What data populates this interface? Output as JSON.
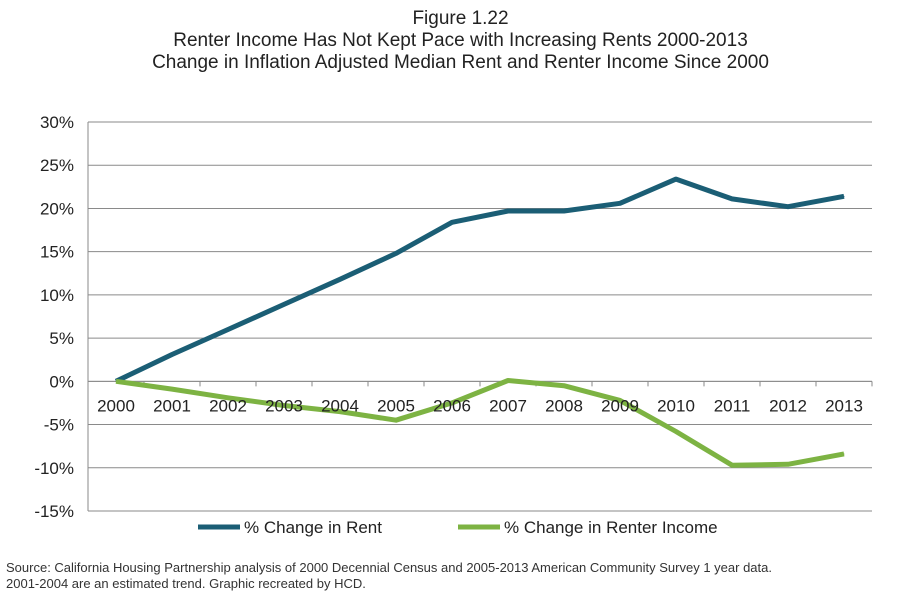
{
  "chart_data": {
    "type": "line",
    "title": "Figure 1.22",
    "subtitle": "Renter Income Has Not Kept Pace with Increasing Rents 2000-2013",
    "subtitle2": "Change in Inflation Adjusted Median Rent and Renter Income Since 2000",
    "categories": [
      "2000",
      "2001",
      "2002",
      "2003",
      "2004",
      "2005",
      "2006",
      "2007",
      "2008",
      "2009",
      "2010",
      "2011",
      "2012",
      "2013"
    ],
    "ylim": [
      -15,
      30
    ],
    "yticks": [
      "30%",
      "25%",
      "20%",
      "15%",
      "10%",
      "5%",
      "0%",
      "-5%",
      "-10%",
      "-15%"
    ],
    "ytick_values": [
      30,
      25,
      20,
      15,
      10,
      5,
      0,
      -5,
      -10,
      -15
    ],
    "grid": true,
    "legend_position": "bottom",
    "series": [
      {
        "name": "% Change in Rent",
        "color": "#1b5e75",
        "values": [
          0,
          3.1,
          6.0,
          8.9,
          11.8,
          14.8,
          18.4,
          19.7,
          19.7,
          20.6,
          23.4,
          21.1,
          20.2,
          21.4
        ]
      },
      {
        "name": "% Change in Renter Income",
        "color": "#7db343",
        "values": [
          0,
          -0.9,
          -1.9,
          -2.8,
          -3.5,
          -4.5,
          -2.5,
          0.1,
          -0.5,
          -2.2,
          -5.8,
          -9.7,
          -9.6,
          -8.4
        ]
      }
    ]
  },
  "source": {
    "line1": "Source: California Housing Partnership analysis of 2000 Decennial Census and 2005-2013 American Community Survey 1 year data.",
    "line2": "2001-2004 are an estimated trend. Graphic recreated by HCD."
  }
}
